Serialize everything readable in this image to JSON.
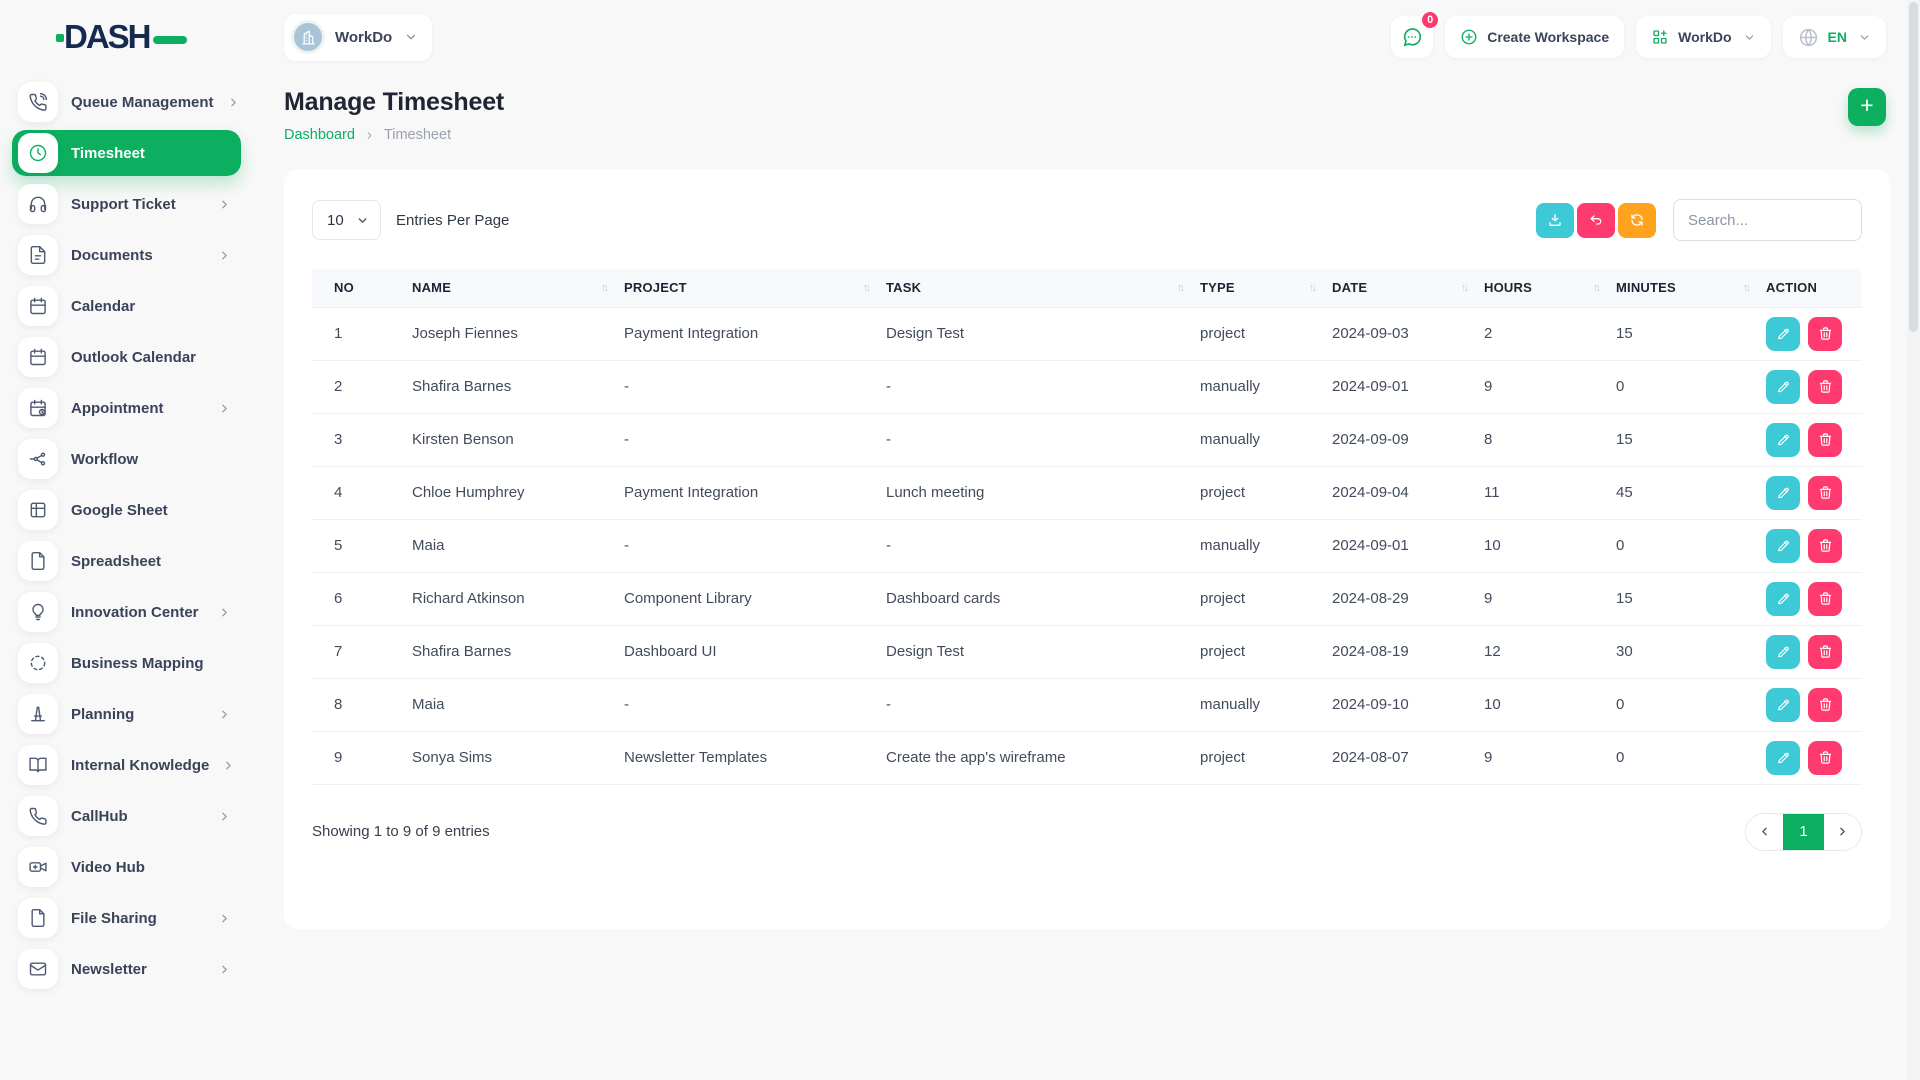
{
  "brand": {
    "name": "DASH"
  },
  "colors": {
    "primary_green": "#0caf60",
    "cyan": "#3ec9d6",
    "pink": "#ff3a6e",
    "orange": "#ffa21d"
  },
  "topbar": {
    "workspace_selector": {
      "label": "WorkDo"
    },
    "chat": {
      "badge": "0"
    },
    "create_workspace": {
      "label": "Create Workspace"
    },
    "app_menu": {
      "label": "WorkDo"
    },
    "language": {
      "label": "EN"
    }
  },
  "sidebar": {
    "items": [
      {
        "label": "Queue Management",
        "icon": "phone-call-icon",
        "expandable": true,
        "active": false
      },
      {
        "label": "Timesheet",
        "icon": "clock-icon",
        "expandable": false,
        "active": true
      },
      {
        "label": "Support Ticket",
        "icon": "headphones-icon",
        "expandable": true,
        "active": false
      },
      {
        "label": "Documents",
        "icon": "document-icon",
        "expandable": true,
        "active": false
      },
      {
        "label": "Calendar",
        "icon": "calendar-icon",
        "expandable": false,
        "active": false
      },
      {
        "label": "Outlook Calendar",
        "icon": "calendar-icon",
        "expandable": false,
        "active": false
      },
      {
        "label": "Appointment",
        "icon": "calendar-clock-icon",
        "expandable": true,
        "active": false
      },
      {
        "label": "Workflow",
        "icon": "workflow-icon",
        "expandable": false,
        "active": false
      },
      {
        "label": "Google Sheet",
        "icon": "table-grid-icon",
        "expandable": false,
        "active": false
      },
      {
        "label": "Spreadsheet",
        "icon": "file-icon",
        "expandable": false,
        "active": false
      },
      {
        "label": "Innovation Center",
        "icon": "bulb-icon",
        "expandable": true,
        "active": false
      },
      {
        "label": "Business Mapping",
        "icon": "dashed-circle-icon",
        "expandable": false,
        "active": false
      },
      {
        "label": "Planning",
        "icon": "cone-icon",
        "expandable": true,
        "active": false
      },
      {
        "label": "Internal Knowledge",
        "icon": "book-open-icon",
        "expandable": true,
        "active": false
      },
      {
        "label": "CallHub",
        "icon": "phone-icon",
        "expandable": true,
        "active": false
      },
      {
        "label": "Video Hub",
        "icon": "video-camera-icon",
        "expandable": false,
        "active": false
      },
      {
        "label": "File Sharing",
        "icon": "file-icon",
        "expandable": true,
        "active": false
      },
      {
        "label": "Newsletter",
        "icon": "mail-icon",
        "expandable": true,
        "active": false
      }
    ]
  },
  "page": {
    "title": "Manage Timesheet",
    "breadcrumb": {
      "home": "Dashboard",
      "current": "Timesheet"
    },
    "add_button_label": "+"
  },
  "table": {
    "entries_select_value": "10",
    "entries_label": "Entries Per Page",
    "search_placeholder": "Search...",
    "columns": [
      {
        "label": "NO",
        "sortable": false
      },
      {
        "label": "NAME",
        "sortable": true
      },
      {
        "label": "PROJECT",
        "sortable": true
      },
      {
        "label": "TASK",
        "sortable": true
      },
      {
        "label": "TYPE",
        "sortable": true
      },
      {
        "label": "DATE",
        "sortable": true
      },
      {
        "label": "HOURS",
        "sortable": true
      },
      {
        "label": "MINUTES",
        "sortable": true
      },
      {
        "label": "ACTION",
        "sortable": false
      }
    ],
    "rows": [
      {
        "no": "1",
        "name": "Joseph Fiennes",
        "project": "Payment Integration",
        "task": "Design Test",
        "type": "project",
        "date": "2024-09-03",
        "hours": "2",
        "minutes": "15"
      },
      {
        "no": "2",
        "name": "Shafira Barnes",
        "project": "-",
        "task": "-",
        "type": "manually",
        "date": "2024-09-01",
        "hours": "9",
        "minutes": "0"
      },
      {
        "no": "3",
        "name": "Kirsten Benson",
        "project": "-",
        "task": "-",
        "type": "manually",
        "date": "2024-09-09",
        "hours": "8",
        "minutes": "15"
      },
      {
        "no": "4",
        "name": "Chloe Humphrey",
        "project": "Payment Integration",
        "task": "Lunch meeting",
        "type": "project",
        "date": "2024-09-04",
        "hours": "11",
        "minutes": "45"
      },
      {
        "no": "5",
        "name": "Maia",
        "project": "-",
        "task": "-",
        "type": "manually",
        "date": "2024-09-01",
        "hours": "10",
        "minutes": "0"
      },
      {
        "no": "6",
        "name": "Richard Atkinson",
        "project": "Component Library",
        "task": "Dashboard cards",
        "type": "project",
        "date": "2024-08-29",
        "hours": "9",
        "minutes": "15"
      },
      {
        "no": "7",
        "name": "Shafira Barnes",
        "project": "Dashboard UI",
        "task": "Design Test",
        "type": "project",
        "date": "2024-08-19",
        "hours": "12",
        "minutes": "30"
      },
      {
        "no": "8",
        "name": "Maia",
        "project": "-",
        "task": "-",
        "type": "manually",
        "date": "2024-09-10",
        "hours": "10",
        "minutes": "0"
      },
      {
        "no": "9",
        "name": "Sonya Sims",
        "project": "Newsletter Templates",
        "task": "Create the app's wireframe",
        "type": "project",
        "date": "2024-08-07",
        "hours": "9",
        "minutes": "0"
      }
    ],
    "footer": {
      "showing_text": "Showing 1 to 9 of 9 entries",
      "pagination": {
        "current_page": "1"
      }
    }
  }
}
